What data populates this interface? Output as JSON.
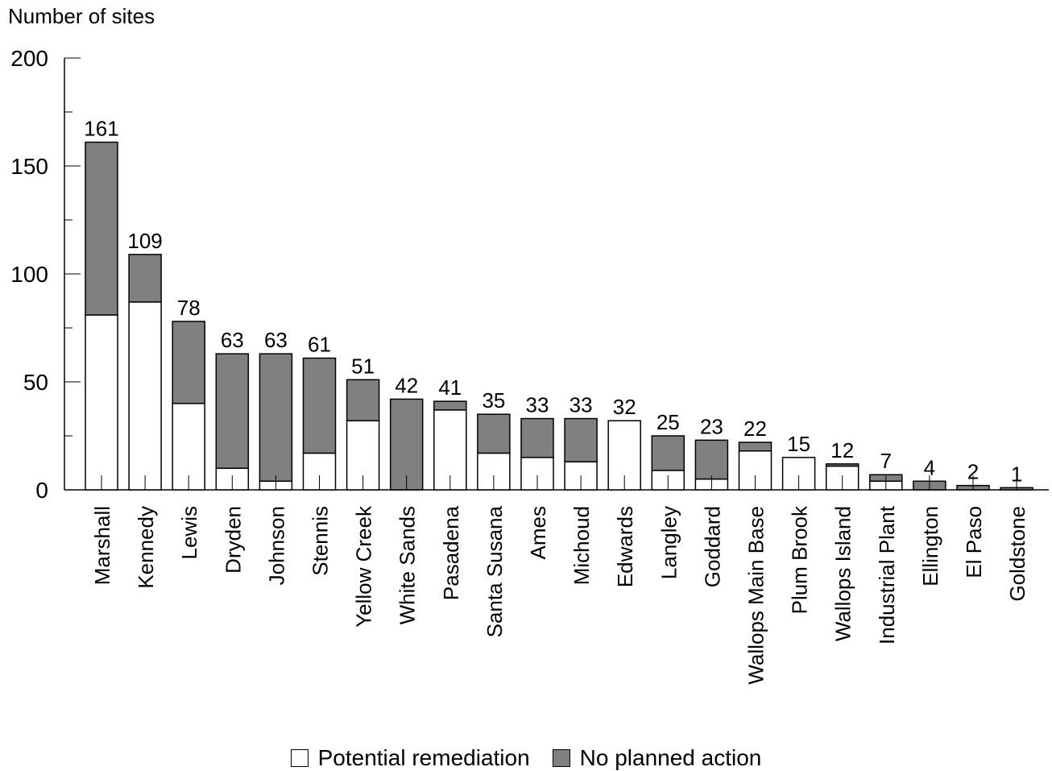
{
  "chart_data": {
    "type": "bar",
    "stacked": true,
    "title": "",
    "ylabel": "Number of sites",
    "xlabel": "",
    "ylim": [
      0,
      200
    ],
    "yticks": [
      0,
      50,
      100,
      150,
      200
    ],
    "categories": [
      "Marshall",
      "Kennedy",
      "Lewis",
      "Dryden",
      "Johnson",
      "Stennis",
      "Yellow Creek",
      "White Sands",
      "Pasadena",
      "Santa Susana",
      "Ames",
      "Michoud",
      "Edwards",
      "Langley",
      "Goddard",
      "Wallops Main Base",
      "Plum Brook",
      "Wallops  Island",
      "Industrial Plant",
      "Ellington",
      "El Paso",
      "Goldstone"
    ],
    "totals": [
      161,
      109,
      78,
      63,
      63,
      61,
      51,
      42,
      41,
      35,
      33,
      33,
      32,
      25,
      23,
      22,
      15,
      12,
      7,
      4,
      2,
      1
    ],
    "series": [
      {
        "name": "Potential remediation",
        "color": "#ffffff",
        "values": [
          81,
          87,
          40,
          10,
          4,
          17,
          32,
          0,
          37,
          17,
          15,
          13,
          32,
          9,
          5,
          18,
          15,
          11,
          4,
          0,
          0,
          0
        ]
      },
      {
        "name": "No planned action",
        "color": "#808080",
        "values": [
          80,
          22,
          38,
          53,
          59,
          44,
          19,
          42,
          4,
          18,
          18,
          20,
          0,
          16,
          18,
          4,
          0,
          1,
          3,
          4,
          2,
          1
        ]
      }
    ],
    "grid": false,
    "legend_position": "bottom-center"
  }
}
